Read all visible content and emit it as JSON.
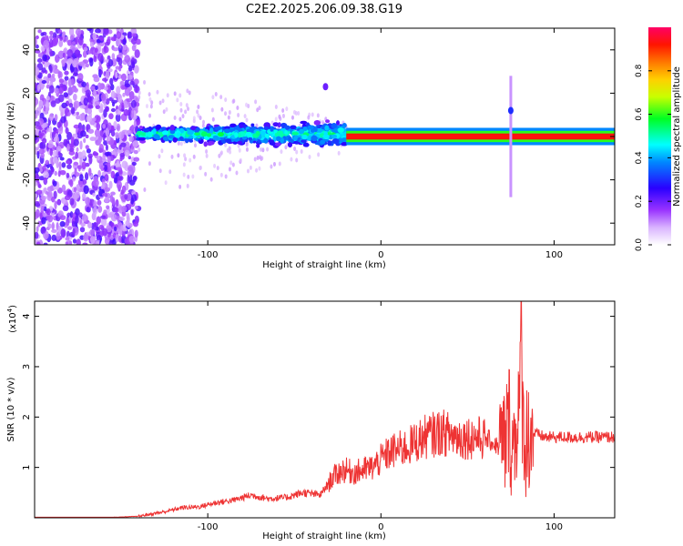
{
  "title": "C2E2.2025.206.09.38.G19",
  "chart_data": [
    {
      "type": "heatmap",
      "xlabel": "Height of straight line (km)",
      "ylabel": "Frequency (Hz)",
      "xlim": [
        -200,
        135
      ],
      "ylim": [
        -50,
        50
      ],
      "xticks": [
        -100,
        0,
        100
      ],
      "xtick_labels": [
        "-100",
        "0",
        "100"
      ],
      "yticks": [
        -40,
        -20,
        0,
        20,
        40
      ],
      "ytick_labels": [
        "-40",
        "-20",
        "0",
        "20",
        "40"
      ],
      "colorbar": {
        "label": "Normalized spectral amplitude",
        "range": [
          0,
          1
        ],
        "ticks": [
          0.0,
          0.2,
          0.4,
          0.6,
          0.8
        ],
        "tick_labels": [
          "0.0",
          "0.2",
          "0.4",
          "0.6",
          "0.8"
        ],
        "colors": [
          "#ffffff",
          "#bb77ff",
          "#7a00ff",
          "#0000ff",
          "#00ffff",
          "#00ff00",
          "#ffff00",
          "#ff8000",
          "#ff0000",
          "#ff0066"
        ]
      },
      "regions": [
        {
          "x": [
            -200,
            -140
          ],
          "freq_center": 0,
          "freq_halfwidth": 50,
          "amplitude": 0.15,
          "description": "noise"
        },
        {
          "x": [
            -140,
            -20
          ],
          "freq_center": 0,
          "freq_halfwidth": 6,
          "amplitude": 0.35
        },
        {
          "x": [
            -20,
            135
          ],
          "freq_center": 0,
          "freq_halfwidth": 1.5,
          "amplitude": 0.95
        }
      ],
      "spikes": [
        {
          "x": -32,
          "freq": 23,
          "amplitude": 0.2
        },
        {
          "x": 75,
          "freq": 0,
          "freq_halfwidth": 28,
          "amplitude": 0.1
        },
        {
          "x": 75,
          "freq": 12,
          "amplitude": 0.3
        }
      ]
    },
    {
      "type": "line",
      "xlabel": "Height of straight line (km)",
      "ylabel": "SNR (10 * v/v)",
      "y_multiplier_label": "(x10",
      "y_multiplier_exp": "4",
      "y_multiplier_close": ")",
      "xlim": [
        -200,
        135
      ],
      "ylim": [
        0,
        4.3
      ],
      "xticks": [
        -100,
        0,
        100
      ],
      "xtick_labels": [
        "-100",
        "0",
        "100"
      ],
      "yticks": [
        1,
        2,
        3,
        4
      ],
      "ytick_labels": [
        "1",
        "2",
        "3",
        "4"
      ],
      "color": "#ee3333",
      "series": [
        {
          "x": [
            -200,
            -160,
            -140,
            -125,
            -115,
            -105,
            -95,
            -85,
            -75,
            -65,
            -55,
            -45,
            -35,
            -28,
            -22,
            -15,
            -5,
            5,
            15,
            25,
            35,
            45,
            55,
            62,
            68,
            72,
            74,
            76,
            78,
            81,
            83,
            86,
            95,
            105,
            115,
            125,
            135
          ],
          "values": [
            0.0,
            0.0,
            0.03,
            0.12,
            0.2,
            0.22,
            0.3,
            0.35,
            0.45,
            0.38,
            0.4,
            0.5,
            0.45,
            0.8,
            0.95,
            0.9,
            1.0,
            1.3,
            1.4,
            1.6,
            1.7,
            1.6,
            1.6,
            1.55,
            1.4,
            1.5,
            2.0,
            1.3,
            1.8,
            2.6,
            1.5,
            1.7,
            1.6,
            1.6,
            1.6,
            1.6,
            1.6
          ]
        }
      ]
    }
  ]
}
